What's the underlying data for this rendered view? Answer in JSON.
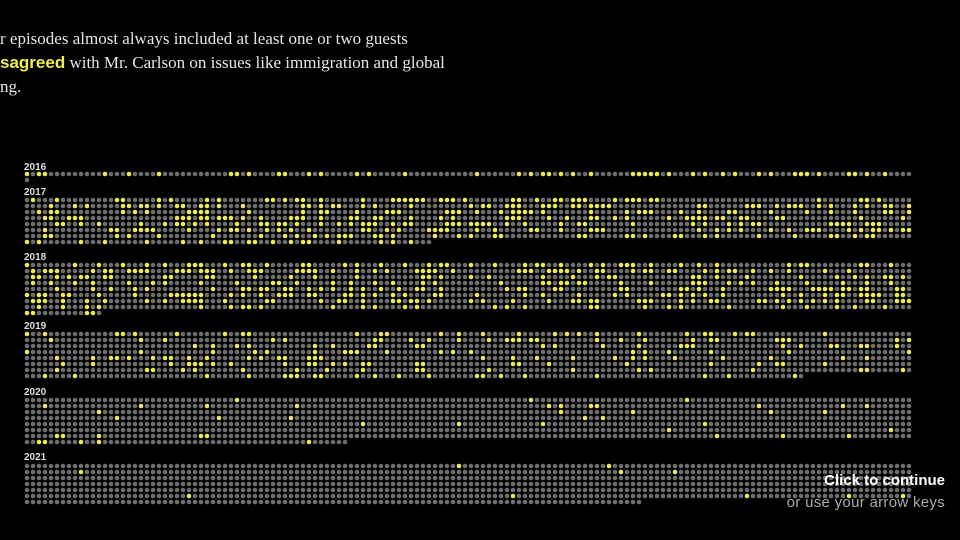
{
  "intro": {
    "line1": "r episodes almost always included at least one or two guests",
    "highlight": "sagreed",
    "line2": " with Mr. Carlson on issues like immigration and global",
    "line3": "ng."
  },
  "years": [
    "2016",
    "2017",
    "2018",
    "2019",
    "2020",
    "2021"
  ],
  "nav": {
    "action": "Click to continue",
    "hint": "or use your arrow keys"
  }
}
